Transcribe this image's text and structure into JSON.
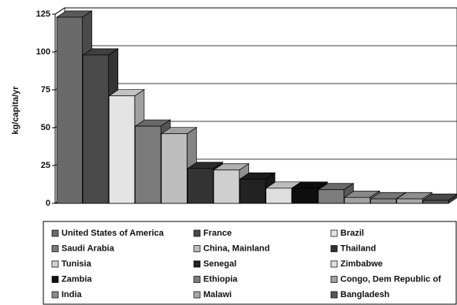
{
  "chart_data": {
    "type": "bar3d",
    "y_label": "kg/capita/yr",
    "categories": [
      "United States of America",
      "France",
      "Brazil",
      "Saudi Arabia",
      "China, Mainland",
      "Thailand",
      "Tunisia",
      "Senegal",
      "Zimbabwe",
      "Zambia",
      "Ethiopia",
      "Congo, Dem Republic of",
      "India",
      "Malawi",
      "Bangladesh"
    ],
    "values": [
      123,
      98,
      71,
      51,
      46,
      23,
      22,
      16,
      10,
      10,
      9,
      4,
      3,
      3,
      2
    ],
    "colors": [
      "#6a6a6a",
      "#4a4a4a",
      "#e4e4e4",
      "#7a7a7a",
      "#bdbdbd",
      "#333333",
      "#cfcfcf",
      "#222222",
      "#dedede",
      "#0e0e0e",
      "#7c7c7c",
      "#a0a0a0",
      "#8a8a8a",
      "#a8a8a8",
      "#565656"
    ],
    "ylim": [
      0,
      125
    ],
    "yticks": [
      0,
      25,
      50,
      75,
      100,
      125
    ],
    "grid": true,
    "legend": "bottom"
  }
}
